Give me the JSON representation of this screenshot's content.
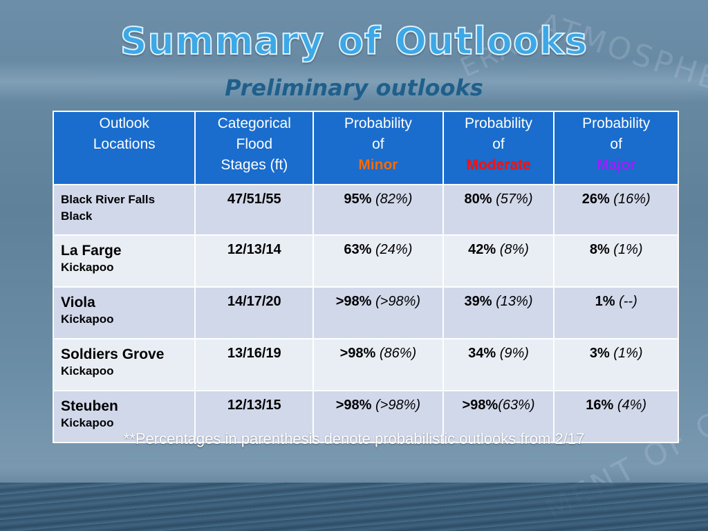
{
  "title": "Summary of Outlooks",
  "subtitle": "Preliminary outlooks",
  "watermark": {
    "word1": "ATMOSPHE",
    "word2": "MENT OF CO",
    "word3": "ERA"
  },
  "table": {
    "headers": {
      "locations": [
        "Outlook",
        "Locations"
      ],
      "stages": [
        "Categorical",
        "Flood",
        "Stages (ft)"
      ],
      "minor": [
        "Probability",
        "of",
        "Minor"
      ],
      "moderate": [
        "Probability",
        "of",
        "Moderate"
      ],
      "major": [
        "Probability",
        "of",
        "Major"
      ]
    },
    "rows": [
      {
        "name": "Black River Falls",
        "river": "Black",
        "stages": "47/51/55",
        "minor": "95%",
        "minor_prev": "(82%)",
        "moderate": "80%",
        "moderate_prev": "(57%)",
        "major": "26%",
        "major_prev": "(16%)"
      },
      {
        "name": "La Farge",
        "river": "Kickapoo",
        "stages": "12/13/14",
        "minor": "63%",
        "minor_prev": "(24%)",
        "moderate": "42%",
        "moderate_prev": "(8%)",
        "major": "8%",
        "major_prev": "(1%)"
      },
      {
        "name": "Viola",
        "river": "Kickapoo",
        "stages": "14/17/20",
        "minor": ">98%",
        "minor_prev": "(>98%)",
        "moderate": "39%",
        "moderate_prev": "(13%)",
        "major": "1%",
        "major_prev": "(--)"
      },
      {
        "name": "Soldiers Grove",
        "river": "Kickapoo",
        "stages": "13/16/19",
        "minor": ">98%",
        "minor_prev": "(86%)",
        "moderate": "34%",
        "moderate_prev": "(9%)",
        "major": "3%",
        "major_prev": "(1%)"
      },
      {
        "name": "Steuben",
        "river": "Kickapoo",
        "stages": "12/13/15",
        "minor": ">98%",
        "minor_prev": "(>98%)",
        "moderate": ">98%",
        "moderate_prev": "(63%)",
        "major": "16%",
        "major_prev": "(4%)"
      }
    ]
  },
  "footnote": "**Percentages in parenthesis denote probabilistic outlooks from 2/17",
  "colors": {
    "header_bg": "#1a6dcc",
    "title": "#3ea8e6",
    "minor": "#ff6a00",
    "moderate": "#ff1010",
    "major": "#9b22ff"
  }
}
